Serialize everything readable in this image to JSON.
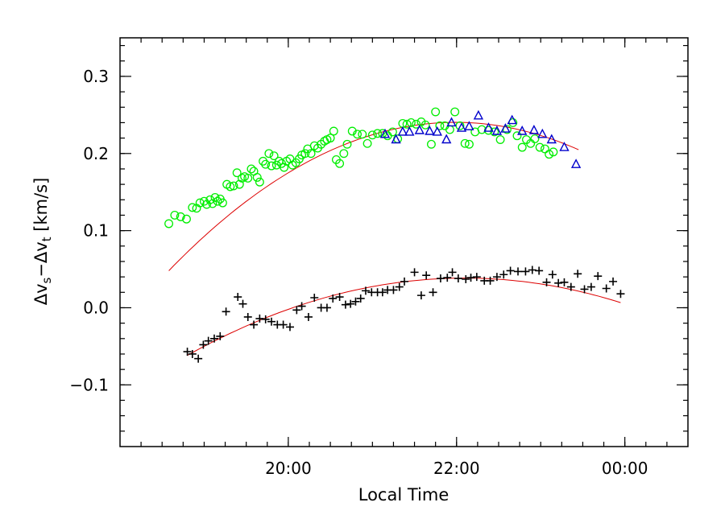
{
  "chart_data": {
    "type": "scatter",
    "title": "",
    "xlabel": "Local Time",
    "ylabel": {
      "prefix1": "Δv",
      "sub1": "s",
      "mid": "−Δv",
      "sub2": "t",
      "suffix": " [km/s]"
    },
    "xlim": [
      18.0,
      24.75
    ],
    "ylim": [
      -0.18,
      0.35
    ],
    "x_ticks": [
      {
        "value": 20,
        "label": "20:00"
      },
      {
        "value": 22,
        "label": "22:00"
      },
      {
        "value": 24,
        "label": "00:00"
      }
    ],
    "x_minor_step": 0.25,
    "y_ticks": [
      {
        "value": -0.1,
        "label": "−0.1"
      },
      {
        "value": 0.0,
        "label": "0.0"
      },
      {
        "value": 0.1,
        "label": "0.1"
      },
      {
        "value": 0.2,
        "label": "0.2"
      },
      {
        "value": 0.3,
        "label": "0.3"
      }
    ],
    "y_minor_step": 0.02,
    "grid": false,
    "series": [
      {
        "marker": "circle",
        "color": "#00ee00",
        "points": [
          [
            18.58,
            0.109
          ],
          [
            18.65,
            0.12
          ],
          [
            18.72,
            0.118
          ],
          [
            18.79,
            0.115
          ],
          [
            18.86,
            0.13
          ],
          [
            18.91,
            0.129
          ],
          [
            18.95,
            0.136
          ],
          [
            19.0,
            0.138
          ],
          [
            19.03,
            0.134
          ],
          [
            19.07,
            0.14
          ],
          [
            19.1,
            0.135
          ],
          [
            19.13,
            0.143
          ],
          [
            19.16,
            0.138
          ],
          [
            19.19,
            0.141
          ],
          [
            19.22,
            0.136
          ],
          [
            19.27,
            0.16
          ],
          [
            19.31,
            0.157
          ],
          [
            19.35,
            0.158
          ],
          [
            19.39,
            0.175
          ],
          [
            19.42,
            0.16
          ],
          [
            19.45,
            0.168
          ],
          [
            19.48,
            0.17
          ],
          [
            19.52,
            0.168
          ],
          [
            19.56,
            0.18
          ],
          [
            19.59,
            0.177
          ],
          [
            19.63,
            0.169
          ],
          [
            19.66,
            0.163
          ],
          [
            19.7,
            0.19
          ],
          [
            19.73,
            0.186
          ],
          [
            19.77,
            0.2
          ],
          [
            19.8,
            0.184
          ],
          [
            19.83,
            0.197
          ],
          [
            19.86,
            0.185
          ],
          [
            19.89,
            0.19
          ],
          [
            19.92,
            0.187
          ],
          [
            19.95,
            0.182
          ],
          [
            19.98,
            0.19
          ],
          [
            20.02,
            0.193
          ],
          [
            20.05,
            0.185
          ],
          [
            20.09,
            0.188
          ],
          [
            20.13,
            0.193
          ],
          [
            20.16,
            0.198
          ],
          [
            20.2,
            0.2
          ],
          [
            20.23,
            0.206
          ],
          [
            20.27,
            0.2
          ],
          [
            20.31,
            0.21
          ],
          [
            20.35,
            0.207
          ],
          [
            20.39,
            0.212
          ],
          [
            20.43,
            0.216
          ],
          [
            20.46,
            0.218
          ],
          [
            20.5,
            0.22
          ],
          [
            20.54,
            0.229
          ],
          [
            20.57,
            0.192
          ],
          [
            20.61,
            0.187
          ],
          [
            20.66,
            0.2
          ],
          [
            20.7,
            0.212
          ],
          [
            20.76,
            0.229
          ],
          [
            20.82,
            0.225
          ],
          [
            20.88,
            0.225
          ],
          [
            20.94,
            0.213
          ],
          [
            21.0,
            0.224
          ],
          [
            21.06,
            0.226
          ],
          [
            21.12,
            0.226
          ],
          [
            21.18,
            0.223
          ],
          [
            21.24,
            0.228
          ],
          [
            21.3,
            0.219
          ],
          [
            21.36,
            0.239
          ],
          [
            21.41,
            0.238
          ],
          [
            21.46,
            0.24
          ],
          [
            21.52,
            0.238
          ],
          [
            21.58,
            0.241
          ],
          [
            21.63,
            0.237
          ],
          [
            21.7,
            0.212
          ],
          [
            21.75,
            0.254
          ],
          [
            21.8,
            0.236
          ],
          [
            21.86,
            0.236
          ],
          [
            21.92,
            0.231
          ],
          [
            21.98,
            0.254
          ],
          [
            22.04,
            0.236
          ],
          [
            22.1,
            0.213
          ],
          [
            22.15,
            0.212
          ],
          [
            22.22,
            0.228
          ],
          [
            22.3,
            0.231
          ],
          [
            22.38,
            0.23
          ],
          [
            22.45,
            0.228
          ],
          [
            22.52,
            0.218
          ],
          [
            22.6,
            0.231
          ],
          [
            22.67,
            0.24
          ],
          [
            22.72,
            0.223
          ],
          [
            22.78,
            0.208
          ],
          [
            22.83,
            0.218
          ],
          [
            22.88,
            0.213
          ],
          [
            22.93,
            0.219
          ],
          [
            22.99,
            0.208
          ],
          [
            23.05,
            0.206
          ],
          [
            23.1,
            0.199
          ],
          [
            23.15,
            0.202
          ]
        ]
      },
      {
        "marker": "triangle",
        "color": "#0000cc",
        "points": [
          [
            21.15,
            0.225
          ],
          [
            21.28,
            0.218
          ],
          [
            21.36,
            0.228
          ],
          [
            21.44,
            0.228
          ],
          [
            21.56,
            0.23
          ],
          [
            21.68,
            0.229
          ],
          [
            21.77,
            0.228
          ],
          [
            21.88,
            0.218
          ],
          [
            21.94,
            0.24
          ],
          [
            22.06,
            0.233
          ],
          [
            22.15,
            0.235
          ],
          [
            22.26,
            0.249
          ],
          [
            22.38,
            0.233
          ],
          [
            22.48,
            0.229
          ],
          [
            22.58,
            0.232
          ],
          [
            22.66,
            0.243
          ],
          [
            22.78,
            0.229
          ],
          [
            22.92,
            0.23
          ],
          [
            23.02,
            0.225
          ],
          [
            23.13,
            0.218
          ],
          [
            23.28,
            0.208
          ],
          [
            23.42,
            0.186
          ]
        ]
      },
      {
        "marker": "plus",
        "color": "#000000",
        "points": [
          [
            18.8,
            -0.057
          ],
          [
            18.86,
            -0.06
          ],
          [
            18.93,
            -0.066
          ],
          [
            18.99,
            -0.048
          ],
          [
            19.05,
            -0.043
          ],
          [
            19.12,
            -0.04
          ],
          [
            19.19,
            -0.037
          ],
          [
            19.26,
            -0.005
          ],
          [
            19.4,
            0.014
          ],
          [
            19.46,
            0.005
          ],
          [
            19.52,
            -0.012
          ],
          [
            19.59,
            -0.022
          ],
          [
            19.66,
            -0.014
          ],
          [
            19.73,
            -0.015
          ],
          [
            19.8,
            -0.018
          ],
          [
            19.87,
            -0.022
          ],
          [
            19.94,
            -0.022
          ],
          [
            20.02,
            -0.025
          ],
          [
            20.1,
            -0.003
          ],
          [
            20.16,
            0.002
          ],
          [
            20.24,
            -0.012
          ],
          [
            20.31,
            0.013
          ],
          [
            20.39,
            0.0
          ],
          [
            20.46,
            0.0
          ],
          [
            20.53,
            0.012
          ],
          [
            20.61,
            0.014
          ],
          [
            20.68,
            0.004
          ],
          [
            20.74,
            0.005
          ],
          [
            20.8,
            0.008
          ],
          [
            20.86,
            0.012
          ],
          [
            20.92,
            0.022
          ],
          [
            20.99,
            0.02
          ],
          [
            21.06,
            0.02
          ],
          [
            21.12,
            0.02
          ],
          [
            21.18,
            0.023
          ],
          [
            21.25,
            0.023
          ],
          [
            21.32,
            0.027
          ],
          [
            21.38,
            0.034
          ],
          [
            21.5,
            0.046
          ],
          [
            21.58,
            0.016
          ],
          [
            21.64,
            0.042
          ],
          [
            21.72,
            0.02
          ],
          [
            21.81,
            0.038
          ],
          [
            21.89,
            0.039
          ],
          [
            21.95,
            0.046
          ],
          [
            22.02,
            0.038
          ],
          [
            22.11,
            0.037
          ],
          [
            22.17,
            0.039
          ],
          [
            22.24,
            0.04
          ],
          [
            22.33,
            0.035
          ],
          [
            22.4,
            0.035
          ],
          [
            22.48,
            0.04
          ],
          [
            22.56,
            0.043
          ],
          [
            22.64,
            0.048
          ],
          [
            22.73,
            0.047
          ],
          [
            22.82,
            0.047
          ],
          [
            22.9,
            0.049
          ],
          [
            22.98,
            0.048
          ],
          [
            23.07,
            0.033
          ],
          [
            23.14,
            0.043
          ],
          [
            23.21,
            0.032
          ],
          [
            23.28,
            0.033
          ],
          [
            23.36,
            0.027
          ],
          [
            23.44,
            0.044
          ],
          [
            23.52,
            0.024
          ],
          [
            23.6,
            0.027
          ],
          [
            23.68,
            0.041
          ],
          [
            23.78,
            0.025
          ],
          [
            23.86,
            0.034
          ],
          [
            23.95,
            0.018
          ]
        ]
      }
    ],
    "fits": [
      {
        "color": "#dd0000",
        "coeffs": [
          0.2404,
          -0.00045,
          -0.01658
        ],
        "x_range": [
          18.58,
          23.45
        ]
      },
      {
        "color": "#dd0000",
        "coeffs": [
          0.03838,
          0.00173,
          -0.00924
        ],
        "x_range": [
          18.8,
          23.95
        ]
      }
    ]
  }
}
